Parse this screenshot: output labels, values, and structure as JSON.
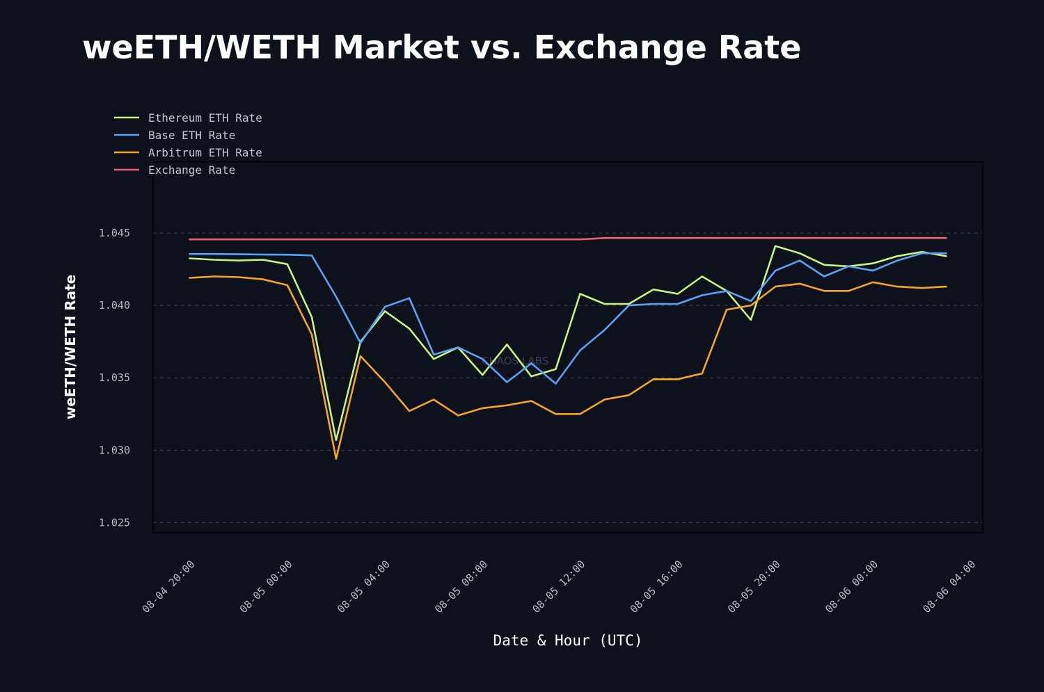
{
  "chart_data": {
    "type": "line",
    "title": "weETH/WETH Market vs. Exchange Rate",
    "xlabel": "Date & Hour (UTC)",
    "ylabel": "weETH/WETH Rate",
    "ylim": [
      1.0243,
      1.0499
    ],
    "xlim": [
      -3,
      65
    ],
    "grid": "horizontal-dashed",
    "legend_position": "top-left",
    "watermark": "CHAOS LABS",
    "y_ticks": [
      {
        "value": 1.025,
        "label": "1.025"
      },
      {
        "value": 1.03,
        "label": "1.030"
      },
      {
        "value": 1.035,
        "label": "1.035"
      },
      {
        "value": 1.04,
        "label": "1.040"
      },
      {
        "value": 1.045,
        "label": "1.045"
      }
    ],
    "x_ticks": [
      {
        "value": 0,
        "label": "08-04 20:00"
      },
      {
        "value": 8,
        "label": "08-05 00:00"
      },
      {
        "value": 16,
        "label": "08-05 04:00"
      },
      {
        "value": 24,
        "label": "08-05 08:00"
      },
      {
        "value": 32,
        "label": "08-05 12:00"
      },
      {
        "value": 40,
        "label": "08-05 16:00"
      },
      {
        "value": 48,
        "label": "08-05 20:00"
      },
      {
        "value": 56,
        "label": "08-06 00:00"
      },
      {
        "value": 64,
        "label": "08-06 04:00"
      }
    ],
    "x_hours": [
      0,
      2,
      4,
      6,
      8,
      10,
      12,
      14,
      16,
      18,
      20,
      22,
      24,
      26,
      28,
      30,
      32,
      34,
      36,
      38,
      40,
      42,
      44,
      46,
      48,
      50,
      52,
      54,
      56,
      58,
      60,
      62
    ],
    "series": [
      {
        "name": "Ethereum ETH Rate",
        "color": "#c6f47e",
        "values": [
          1.04325,
          1.04315,
          1.0431,
          1.04315,
          1.04285,
          1.0392,
          1.0307,
          1.0375,
          1.0396,
          1.0384,
          1.0363,
          1.0371,
          1.0352,
          1.0373,
          1.0351,
          1.0356,
          1.0408,
          1.0401,
          1.0401,
          1.0411,
          1.0408,
          1.042,
          1.041,
          1.039,
          1.0441,
          1.0436,
          1.0428,
          1.0427,
          1.0429,
          1.0434,
          1.0437,
          1.0434
        ]
      },
      {
        "name": "Base ETH Rate",
        "color": "#5aa2f7",
        "values": [
          1.04355,
          1.04355,
          1.04353,
          1.04351,
          1.0435,
          1.04345,
          1.0406,
          1.0374,
          1.0399,
          1.0405,
          1.0366,
          1.0371,
          1.0363,
          1.0347,
          1.036,
          1.0346,
          1.0369,
          1.0383,
          1.04,
          1.0401,
          1.0401,
          1.0407,
          1.041,
          1.0403,
          1.0424,
          1.0431,
          1.042,
          1.0427,
          1.0424,
          1.0431,
          1.0436,
          1.0436
        ]
      },
      {
        "name": "Arbitrum ETH Rate",
        "color": "#f5a623",
        "values": [
          1.0419,
          1.042,
          1.04195,
          1.0418,
          1.0414,
          1.038,
          1.0294,
          1.0365,
          1.0347,
          1.0327,
          1.0335,
          1.0324,
          1.0329,
          1.0331,
          1.0334,
          1.0325,
          1.0325,
          1.0335,
          1.0338,
          1.0349,
          1.0349,
          1.0353,
          1.0397,
          1.04,
          1.0413,
          1.0415,
          1.041,
          1.041,
          1.0416,
          1.0413,
          1.0412,
          1.0413
        ]
      },
      {
        "name": "Exchange Rate",
        "color": "#ef5f7a",
        "values": [
          1.04456,
          1.04456,
          1.04456,
          1.04456,
          1.04456,
          1.04456,
          1.04456,
          1.04456,
          1.04456,
          1.04456,
          1.04456,
          1.04456,
          1.04456,
          1.04456,
          1.04456,
          1.04456,
          1.04456,
          1.04465,
          1.04465,
          1.04465,
          1.04465,
          1.04465,
          1.04465,
          1.04465,
          1.04465,
          1.04465,
          1.04465,
          1.04465,
          1.04465,
          1.04465,
          1.04465,
          1.04465
        ]
      }
    ]
  }
}
